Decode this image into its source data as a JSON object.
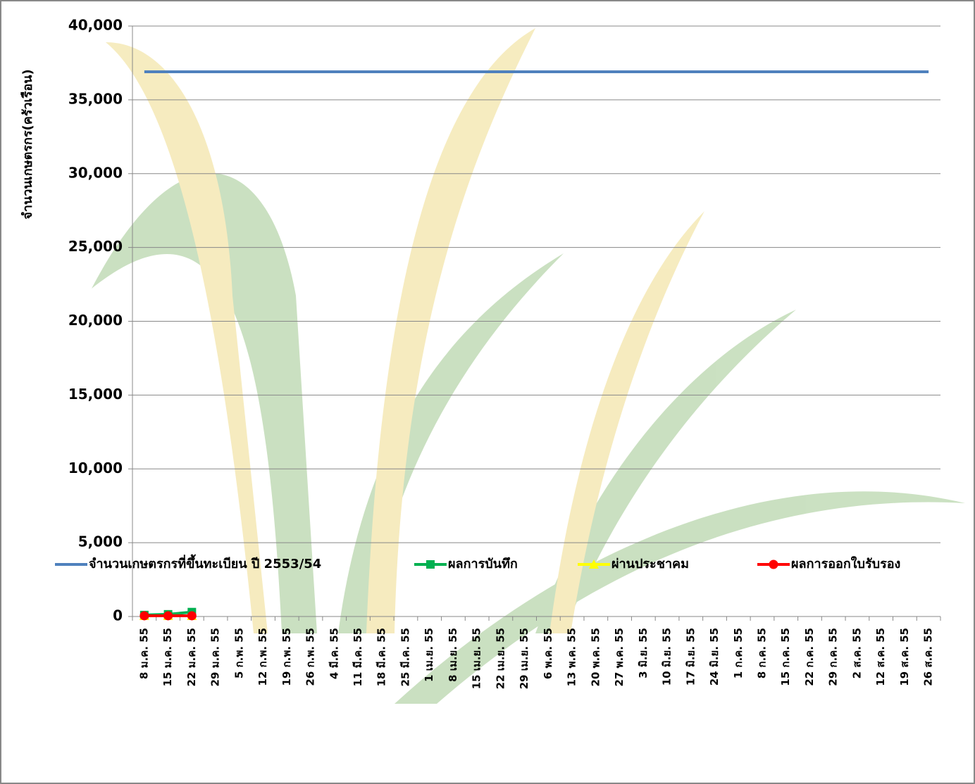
{
  "chart_data": {
    "type": "line",
    "y_label": "จำนวนเกษตรกร(ครัวเรือน)",
    "categories": [
      "8 ม.ค. 55",
      "15 ม.ค. 55",
      "22 ม.ค. 55",
      "29 ม.ค. 55",
      "5 ก.พ. 55",
      "12 ก.พ. 55",
      "19 ก.พ. 55",
      "26 ก.พ. 55",
      "4 มี.ค. 55",
      "11 มี.ค. 55",
      "18 มี.ค. 55",
      "25 มี.ค. 55",
      "1 เม.ย. 55",
      "8 เม.ย. 55",
      "15 เม.ย. 55",
      "22 เม.ย. 55",
      "29 เม.ย. 55",
      "6 พ.ค. 55",
      "13 พ.ค. 55",
      "20 พ.ค. 55",
      "27 พ.ค. 55",
      "3 มิ.ย. 55",
      "10 มิ.ย. 55",
      "17 มิ.ย. 55",
      "24 มิ.ย. 55",
      "1 ก.ค. 55",
      "8 ก.ค. 55",
      "15 ก.ค. 55",
      "22 ก.ค. 55",
      "29 ก.ค. 55",
      "2 ส.ค. 55",
      "12 ส.ค. 55",
      "19 ส.ค. 55",
      "26 ส.ค. 55"
    ],
    "series": [
      {
        "name": "จำนวนเกษตรกรที่ขึ้นทะเบียน ปี 2553/54",
        "color": "#4f81bd",
        "marker": "none",
        "values": [
          36900,
          36900,
          36900,
          36900,
          36900,
          36900,
          36900,
          36900,
          36900,
          36900,
          36900,
          36900,
          36900,
          36900,
          36900,
          36900,
          36900,
          36900,
          36900,
          36900,
          36900,
          36900,
          36900,
          36900,
          36900,
          36900,
          36900,
          36900,
          36900,
          36900,
          36900,
          36900,
          36900,
          36900
        ]
      },
      {
        "name": "ผลการบันทึก",
        "color": "#00b050",
        "marker": "square",
        "values": [
          100,
          150,
          300,
          null,
          null,
          null,
          null,
          null,
          null,
          null,
          null,
          null,
          null,
          null,
          null,
          null,
          null,
          null,
          null,
          null,
          null,
          null,
          null,
          null,
          null,
          null,
          null,
          null,
          null,
          null,
          null,
          null,
          null,
          null
        ]
      },
      {
        "name": "ผ่านประชาคม",
        "color": "#ffff00",
        "marker": "triangle",
        "values": [
          50,
          50,
          50,
          null,
          null,
          null,
          null,
          null,
          null,
          null,
          null,
          null,
          null,
          null,
          null,
          null,
          null,
          null,
          null,
          null,
          null,
          null,
          null,
          null,
          null,
          null,
          null,
          null,
          null,
          null,
          null,
          null,
          null,
          null
        ]
      },
      {
        "name": "ผลการออกใบรับรอง",
        "color": "#ff0000",
        "marker": "circle",
        "values": [
          50,
          50,
          50,
          null,
          null,
          null,
          null,
          null,
          null,
          null,
          null,
          null,
          null,
          null,
          null,
          null,
          null,
          null,
          null,
          null,
          null,
          null,
          null,
          null,
          null,
          null,
          null,
          null,
          null,
          null,
          null,
          null,
          null,
          null
        ]
      }
    ],
    "ylim": [
      0,
      40000
    ],
    "yticks": [
      0,
      {
        "value": 5000,
        "label": "5,000"
      },
      {
        "value": 10000,
        "label": "10,000"
      },
      {
        "value": 15000,
        "label": "15,000"
      },
      {
        "value": 20000,
        "label": "20,000"
      },
      {
        "value": 25000,
        "label": "25,000"
      },
      {
        "value": 30000,
        "label": "30,000"
      },
      {
        "value": 35000,
        "label": "35,000"
      },
      {
        "value": 40000,
        "label": "40,000"
      }
    ],
    "grid": true,
    "legend": "bottom"
  }
}
